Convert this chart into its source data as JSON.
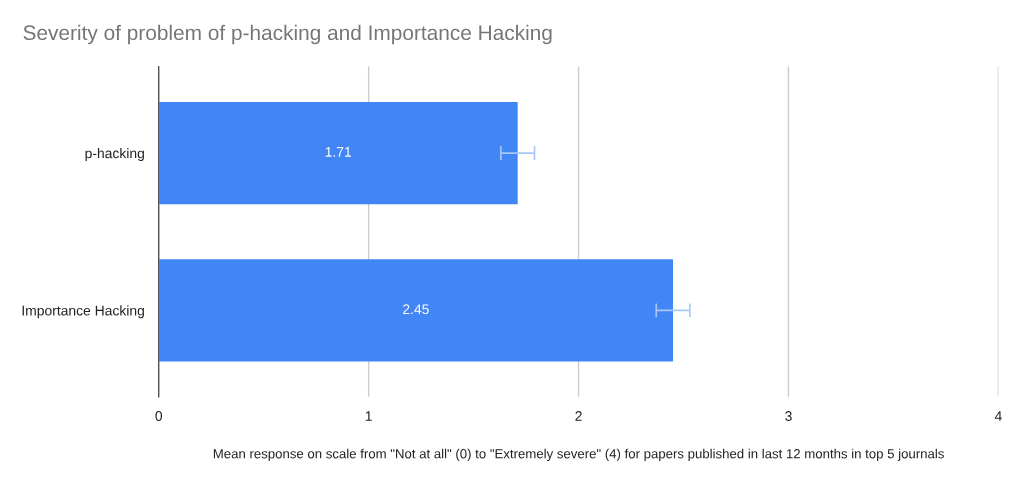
{
  "chart_data": {
    "type": "bar",
    "orientation": "horizontal",
    "title": "Severity of problem of p-hacking and Importance Hacking",
    "xlabel": "Mean response on scale from \"Not at all\" (0) to \"Extremely severe\" (4) for papers published in last 12 months in top 5 journals",
    "categories": [
      "p-hacking",
      "Importance Hacking"
    ],
    "values": [
      1.71,
      2.45
    ],
    "errors": [
      0.08,
      0.08
    ],
    "color": "#4285f4",
    "data_labels": true,
    "xlim": [
      0,
      4
    ],
    "xticks": [
      0,
      1,
      2,
      3,
      4
    ],
    "grid": "x",
    "legend": false
  }
}
